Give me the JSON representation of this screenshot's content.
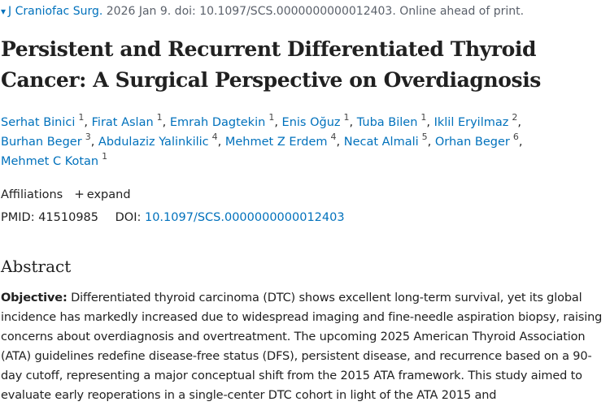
{
  "citation": {
    "journal": "J Craniofac Surg.",
    "details": "2026 Jan 9. doi: 10.1097/SCS.0000000000012403. Online ahead of print."
  },
  "title": "Persistent and Recurrent Differentiated Thyroid Cancer: A Surgical Perspective on Overdiagnosis",
  "authors": [
    {
      "name": "Serhat Binici",
      "aff": "1"
    },
    {
      "name": "Firat Aslan",
      "aff": "1"
    },
    {
      "name": "Emrah Dagtekin",
      "aff": "1"
    },
    {
      "name": "Enis Oğuz",
      "aff": "1"
    },
    {
      "name": "Tuba Bilen",
      "aff": "1"
    },
    {
      "name": "Iklil Eryilmaz",
      "aff": "2"
    },
    {
      "name": "Burhan Beger",
      "aff": "3"
    },
    {
      "name": "Abdulaziz Yalinkilic",
      "aff": "4"
    },
    {
      "name": "Mehmet Z Erdem",
      "aff": "4"
    },
    {
      "name": "Necat Almali",
      "aff": "5"
    },
    {
      "name": "Orhan Beger",
      "aff": "6"
    },
    {
      "name": "Mehmet C Kotan",
      "aff": "1"
    }
  ],
  "affiliations": {
    "label": "Affiliations",
    "expand": "expand"
  },
  "ids": {
    "pmid_label": "PMID:",
    "pmid": "41510985",
    "doi_label": "DOI:",
    "doi": "10.1097/SCS.0000000000012403"
  },
  "abstract": {
    "heading": "Abstract",
    "objective_label": "Objective:",
    "objective_text": "Differentiated thyroid carcinoma (DTC) shows excellent long-term survival, yet its global incidence has markedly increased due to widespread imaging and fine-needle aspiration biopsy, raising concerns about overdiagnosis and overtreatment. The upcoming 2025 American Thyroid Association (ATA) guidelines redefine disease-free status (DFS), persistent disease, and recurrence based on a 90-day cutoff, representing a major conceptual shift from the 2015 ATA framework. This study aimed to evaluate early reoperations in a single-center DTC cohort in light of the ATA 2015 and"
  },
  "colors": {
    "link": "#0071bc",
    "text": "#212121",
    "muted": "#5b616b"
  }
}
